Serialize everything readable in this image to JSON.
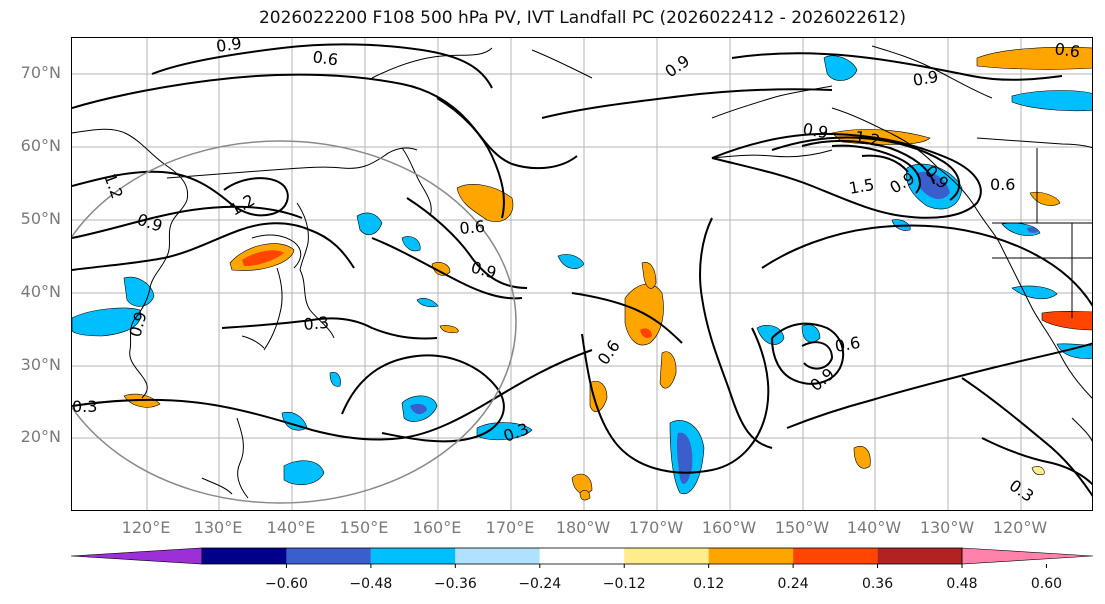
{
  "title": "2026022200 F108 500 hPa PV, IVT Landfall PC (2026022412 - 2026022612)",
  "lat_labels": [
    "70°N",
    "60°N",
    "50°N",
    "40°N",
    "30°N",
    "20°N"
  ],
  "lon_labels": [
    "120°E",
    "130°E",
    "140°E",
    "150°E",
    "160°E",
    "170°E",
    "180°W",
    "170°W",
    "160°W",
    "150°W",
    "140°W",
    "130°W",
    "120°W"
  ],
  "contour_labels": [
    "0.9",
    "0.6",
    "1.2",
    "0.9",
    "1.2",
    "0.9",
    "0.3",
    "0.6",
    "0.9",
    "0.3",
    "0.6",
    "0.9",
    "1.5",
    "1.2",
    "0.9",
    "0.9",
    "0.6",
    "0.9",
    "0.6",
    "0.9",
    "0.3",
    "0.9",
    "0.6",
    "0.3"
  ],
  "colorbar": {
    "ticks": [
      "−0.60",
      "−0.48",
      "−0.36",
      "−0.24",
      "−0.12",
      "0.12",
      "0.24",
      "0.36",
      "0.48",
      "0.60"
    ],
    "colors": [
      "#9b30d9",
      "#00008b",
      "#3a5fcd",
      "#00bfff",
      "#b0e2ff",
      "#ffffff",
      "#ffec8b",
      "#ffa500",
      "#ff4500",
      "#b22222",
      "#ff82ab"
    ]
  }
}
